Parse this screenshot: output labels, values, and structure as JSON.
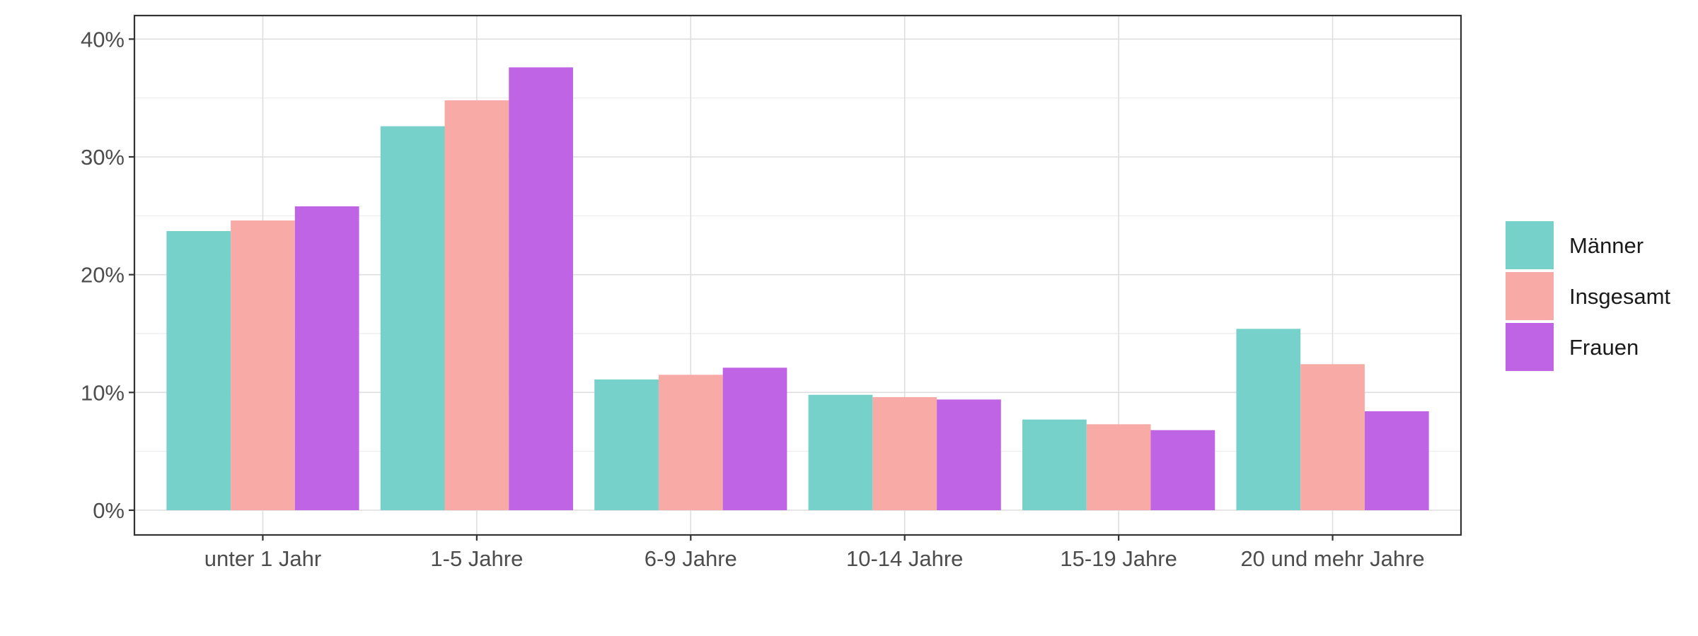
{
  "chart_data": {
    "type": "bar",
    "categories": [
      "unter 1 Jahr",
      "1-5 Jahre",
      "6-9 Jahre",
      "10-14 Jahre",
      "15-19 Jahre",
      "20 und mehr Jahre"
    ],
    "series": [
      {
        "name": "Männer",
        "color": "#76D1CA",
        "values": [
          23.7,
          32.6,
          11.1,
          9.8,
          7.7,
          15.4
        ]
      },
      {
        "name": "Insgesamt",
        "color": "#F8ABA6",
        "values": [
          24.6,
          34.8,
          11.5,
          9.6,
          7.3,
          12.4
        ]
      },
      {
        "name": "Frauen",
        "color": "#BE64E4",
        "values": [
          25.8,
          37.6,
          12.1,
          9.4,
          6.8,
          8.4
        ]
      }
    ],
    "title": "",
    "xlabel": "",
    "ylabel": "",
    "ylim": [
      0,
      42
    ],
    "yticks": [
      0,
      10,
      20,
      30,
      40
    ],
    "ytick_labels": [
      "0%",
      "10%",
      "20%",
      "30%",
      "40%"
    ],
    "grid": true,
    "legend_position": "right"
  }
}
